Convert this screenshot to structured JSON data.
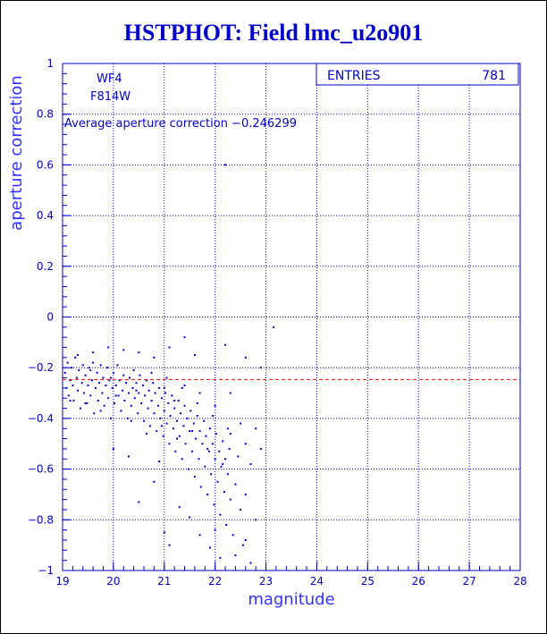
{
  "title": "HSTPHOT: Field lmc_u2o901",
  "chart_data": {
    "type": "scatter",
    "xlabel": "magnitude",
    "ylabel": "aperture correction",
    "xlim": [
      19,
      28
    ],
    "ylim": [
      -1,
      1
    ],
    "x_ticks": [
      19,
      20,
      21,
      22,
      23,
      24,
      25,
      26,
      27,
      28
    ],
    "y_ticks": [
      -1,
      -0.8,
      -0.6,
      -0.4,
      -0.2,
      0,
      0.2,
      0.4,
      0.6,
      0.8,
      1
    ],
    "x_tick_labels": [
      "19",
      "20",
      "21",
      "22",
      "23",
      "24",
      "25",
      "26",
      "27",
      "28"
    ],
    "y_tick_labels": [
      "−1",
      "−0.8",
      "−0.6",
      "−0.4",
      "−0.2",
      "0",
      "0.2",
      "0.4",
      "0.6",
      "0.8",
      "1"
    ],
    "grid": true,
    "annotations": [
      "WF4",
      "F814W",
      "Average aperture correction −0.246299"
    ],
    "stats": {
      "label": "ENTRIES",
      "value": "781"
    },
    "reference_line": {
      "y": -0.246299,
      "color": "#ff0000",
      "style": "dashed"
    },
    "point_color": "#0000cc",
    "points": [
      [
        19.05,
        -0.22
      ],
      [
        19.08,
        -0.28
      ],
      [
        19.1,
        -0.18
      ],
      [
        19.12,
        -0.31
      ],
      [
        19.15,
        -0.25
      ],
      [
        19.18,
        -0.2
      ],
      [
        19.2,
        -0.27
      ],
      [
        19.22,
        -0.33
      ],
      [
        19.25,
        -0.16
      ],
      [
        19.28,
        -0.24
      ],
      [
        19.3,
        -0.29
      ],
      [
        19.32,
        -0.21
      ],
      [
        19.35,
        -0.36
      ],
      [
        19.38,
        -0.26
      ],
      [
        19.4,
        -0.19
      ],
      [
        19.42,
        -0.3
      ],
      [
        19.45,
        -0.23
      ],
      [
        19.48,
        -0.34
      ],
      [
        19.5,
        -0.27
      ],
      [
        19.52,
        -0.2
      ],
      [
        19.55,
        -0.31
      ],
      [
        19.58,
        -0.25
      ],
      [
        19.6,
        -0.18
      ],
      [
        19.62,
        -0.38
      ],
      [
        19.65,
        -0.28
      ],
      [
        19.68,
        -0.22
      ],
      [
        19.7,
        -0.33
      ],
      [
        19.72,
        -0.26
      ],
      [
        19.75,
        -0.19
      ],
      [
        19.78,
        -0.3
      ],
      [
        19.8,
        -0.24
      ],
      [
        19.82,
        -0.35
      ],
      [
        19.85,
        -0.27
      ],
      [
        19.88,
        -0.2
      ],
      [
        19.9,
        -0.32
      ],
      [
        19.92,
        -0.25
      ],
      [
        19.95,
        -0.4
      ],
      [
        19.98,
        -0.28
      ],
      [
        20.0,
        -0.22
      ],
      [
        20.02,
        -0.34
      ],
      [
        20.05,
        -0.27
      ],
      [
        20.08,
        -0.19
      ],
      [
        20.1,
        -0.31
      ],
      [
        20.12,
        -0.25
      ],
      [
        20.15,
        -0.37
      ],
      [
        20.18,
        -0.29
      ],
      [
        20.2,
        -0.23
      ],
      [
        20.22,
        -0.33
      ],
      [
        20.25,
        -0.26
      ],
      [
        20.28,
        -0.4
      ],
      [
        20.3,
        -0.3
      ],
      [
        20.32,
        -0.24
      ],
      [
        20.35,
        -0.35
      ],
      [
        20.38,
        -0.28
      ],
      [
        20.4,
        -0.21
      ],
      [
        20.42,
        -0.32
      ],
      [
        20.45,
        -0.26
      ],
      [
        20.48,
        -0.38
      ],
      [
        20.5,
        -0.3
      ],
      [
        20.52,
        -0.23
      ],
      [
        20.55,
        -0.34
      ],
      [
        20.58,
        -0.27
      ],
      [
        20.6,
        -0.41
      ],
      [
        20.62,
        -0.31
      ],
      [
        20.65,
        -0.25
      ],
      [
        20.68,
        -0.36
      ],
      [
        20.7,
        -0.29
      ],
      [
        20.72,
        -0.43
      ],
      [
        20.75,
        -0.33
      ],
      [
        20.78,
        -0.26
      ],
      [
        20.8,
        -0.38
      ],
      [
        20.82,
        -0.3
      ],
      [
        20.85,
        -0.45
      ],
      [
        20.88,
        -0.35
      ],
      [
        20.9,
        -0.28
      ],
      [
        20.92,
        -0.4
      ],
      [
        20.95,
        -0.32
      ],
      [
        20.98,
        -0.47
      ],
      [
        21.0,
        -0.37
      ],
      [
        21.02,
        -0.3
      ],
      [
        21.05,
        -0.42
      ],
      [
        21.08,
        -0.34
      ],
      [
        21.1,
        -0.5
      ],
      [
        21.12,
        -0.39
      ],
      [
        21.15,
        -0.31
      ],
      [
        21.18,
        -0.44
      ],
      [
        21.2,
        -0.36
      ],
      [
        21.22,
        -0.53
      ],
      [
        21.25,
        -0.41
      ],
      [
        21.28,
        -0.33
      ],
      [
        21.3,
        -0.47
      ],
      [
        21.32,
        -0.38
      ],
      [
        21.35,
        -0.56
      ],
      [
        21.38,
        -0.43
      ],
      [
        21.4,
        -0.35
      ],
      [
        21.42,
        -0.5
      ],
      [
        21.45,
        -0.4
      ],
      [
        21.48,
        -0.6
      ],
      [
        21.5,
        -0.45
      ],
      [
        21.52,
        -0.37
      ],
      [
        21.55,
        -0.53
      ],
      [
        21.58,
        -0.42
      ],
      [
        21.6,
        -0.63
      ],
      [
        21.62,
        -0.48
      ],
      [
        21.65,
        -0.39
      ],
      [
        21.68,
        -0.56
      ],
      [
        21.7,
        -0.45
      ],
      [
        21.72,
        -0.67
      ],
      [
        21.75,
        -0.5
      ],
      [
        21.78,
        -0.41
      ],
      [
        21.8,
        -0.59
      ],
      [
        21.82,
        -0.47
      ],
      [
        21.85,
        -0.7
      ],
      [
        21.88,
        -0.53
      ],
      [
        21.9,
        -0.44
      ],
      [
        21.92,
        -0.62
      ],
      [
        21.95,
        -0.5
      ],
      [
        21.98,
        -0.74
      ],
      [
        22.0,
        -0.56
      ],
      [
        22.02,
        -0.46
      ],
      [
        22.05,
        -0.65
      ],
      [
        22.08,
        -0.53
      ],
      [
        22.1,
        -0.78
      ],
      [
        22.12,
        -0.59
      ],
      [
        22.15,
        -0.49
      ],
      [
        22.18,
        -0.69
      ],
      [
        22.2,
        -0.56
      ],
      [
        22.22,
        -0.82
      ],
      [
        22.25,
        -0.62
      ],
      [
        22.28,
        -0.52
      ],
      [
        22.3,
        -0.72
      ],
      [
        22.35,
        -0.86
      ],
      [
        22.4,
        -0.66
      ],
      [
        22.45,
        -0.55
      ],
      [
        22.5,
        -0.76
      ],
      [
        22.55,
        -0.9
      ],
      [
        22.6,
        -0.7
      ],
      [
        22.7,
        -0.58
      ],
      [
        22.8,
        -0.8
      ],
      [
        22.9,
        -0.52
      ],
      [
        19.3,
        -0.15
      ],
      [
        19.6,
        -0.14
      ],
      [
        19.9,
        -0.12
      ],
      [
        20.2,
        -0.13
      ],
      [
        20.5,
        -0.14
      ],
      [
        20.8,
        -0.16
      ],
      [
        21.1,
        -0.12
      ],
      [
        21.4,
        -0.08
      ],
      [
        21.6,
        -0.15
      ],
      [
        22.2,
        -0.11
      ],
      [
        22.6,
        -0.16
      ],
      [
        22.9,
        -0.2
      ],
      [
        23.15,
        -0.04
      ],
      [
        22.2,
        0.6
      ],
      [
        21.0,
        -0.28
      ],
      [
        21.2,
        -0.33
      ],
      [
        21.4,
        -0.27
      ],
      [
        21.7,
        -0.3
      ],
      [
        22.0,
        -0.35
      ],
      [
        22.3,
        -0.3
      ],
      [
        20.0,
        -0.52
      ],
      [
        20.3,
        -0.55
      ],
      [
        20.5,
        -0.73
      ],
      [
        20.8,
        -0.65
      ],
      [
        20.9,
        -0.57
      ],
      [
        21.0,
        -0.85
      ],
      [
        21.1,
        -0.9
      ],
      [
        21.3,
        -0.75
      ],
      [
        21.5,
        -0.79
      ],
      [
        21.7,
        -0.86
      ],
      [
        21.9,
        -0.91
      ],
      [
        22.0,
        -0.84
      ],
      [
        22.1,
        -0.95
      ],
      [
        22.4,
        -0.94
      ],
      [
        22.6,
        -0.88
      ],
      [
        22.7,
        -0.97
      ],
      [
        22.3,
        -0.46
      ],
      [
        22.5,
        -0.42
      ],
      [
        22.6,
        -0.5
      ],
      [
        22.8,
        -0.44
      ],
      [
        19.45,
        -0.34
      ],
      [
        19.75,
        -0.37
      ],
      [
        20.05,
        -0.31
      ],
      [
        20.35,
        -0.41
      ],
      [
        20.65,
        -0.46
      ],
      [
        20.95,
        -0.43
      ],
      [
        21.25,
        -0.48
      ],
      [
        21.55,
        -0.45
      ],
      [
        21.85,
        -0.52
      ],
      [
        22.15,
        -0.58
      ],
      [
        19.15,
        -0.33
      ],
      [
        19.55,
        -0.21
      ],
      [
        19.95,
        -0.24
      ],
      [
        20.45,
        -0.29
      ],
      [
        20.75,
        -0.22
      ],
      [
        21.05,
        -0.24
      ],
      [
        21.35,
        -0.28
      ],
      [
        21.65,
        -0.34
      ],
      [
        21.95,
        -0.39
      ],
      [
        22.25,
        -0.44
      ]
    ]
  }
}
